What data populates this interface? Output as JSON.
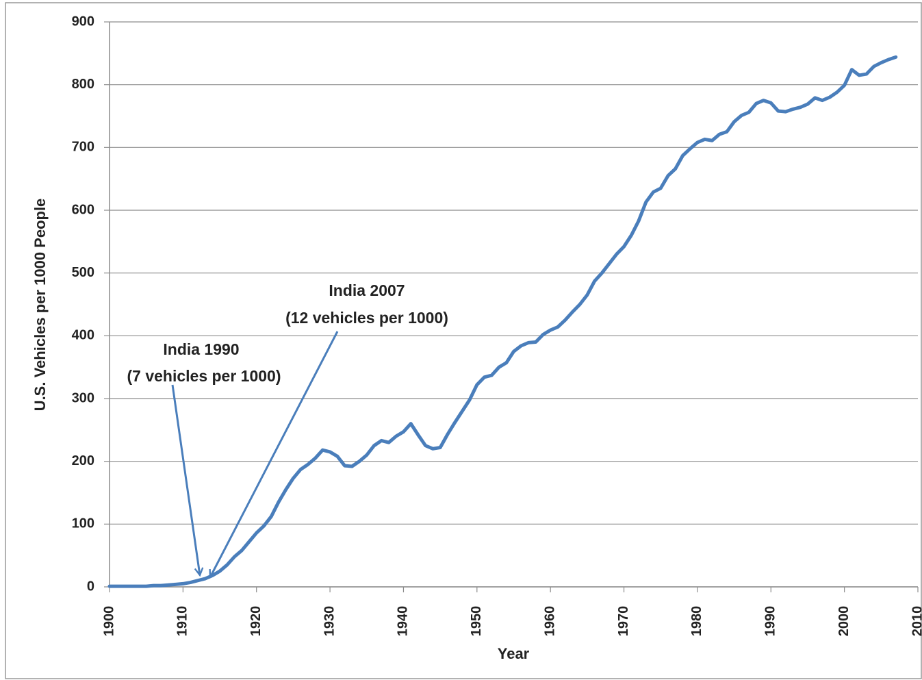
{
  "chart_data": {
    "type": "line",
    "xlabel": "Year",
    "ylabel": "U.S. Vehicles per 1000 People",
    "x": [
      1900,
      1901,
      1902,
      1903,
      1904,
      1905,
      1906,
      1907,
      1908,
      1909,
      1910,
      1911,
      1912,
      1913,
      1914,
      1915,
      1916,
      1917,
      1918,
      1919,
      1920,
      1921,
      1922,
      1923,
      1924,
      1925,
      1926,
      1927,
      1928,
      1929,
      1930,
      1931,
      1932,
      1933,
      1934,
      1935,
      1936,
      1937,
      1938,
      1939,
      1940,
      1941,
      1942,
      1943,
      1944,
      1945,
      1946,
      1947,
      1948,
      1949,
      1950,
      1951,
      1952,
      1953,
      1954,
      1955,
      1956,
      1957,
      1958,
      1959,
      1960,
      1961,
      1962,
      1963,
      1964,
      1965,
      1966,
      1967,
      1968,
      1969,
      1970,
      1971,
      1972,
      1973,
      1974,
      1975,
      1976,
      1977,
      1978,
      1979,
      1980,
      1981,
      1982,
      1983,
      1984,
      1985,
      1986,
      1987,
      1988,
      1989,
      1990,
      1991,
      1992,
      1993,
      1994,
      1995,
      1996,
      1997,
      1998,
      1999,
      2000,
      2001,
      2002,
      2003,
      2004,
      2005,
      2006,
      2007
    ],
    "series": [
      {
        "color": "#4a7ebb",
        "values": [
          1,
          1,
          1,
          1,
          1,
          1,
          2,
          2,
          3,
          4,
          5,
          7,
          10,
          13,
          18,
          25,
          35,
          48,
          58,
          72,
          86,
          97,
          112,
          135,
          155,
          173,
          187,
          195,
          205,
          218,
          215,
          208,
          193,
          192,
          200,
          210,
          225,
          233,
          230,
          240,
          247,
          260,
          242,
          225,
          220,
          222,
          243,
          262,
          280,
          298,
          322,
          334,
          337,
          350,
          357,
          375,
          384,
          389,
          390,
          402,
          409,
          414,
          425,
          438,
          450,
          465,
          487,
          500,
          515,
          530,
          542,
          560,
          583,
          613,
          629,
          635,
          655,
          666,
          687,
          698,
          708,
          713,
          711,
          721,
          725,
          741,
          751,
          756,
          770,
          775,
          771,
          758,
          757,
          761,
          764,
          769,
          779,
          775,
          780,
          788,
          799,
          824,
          815,
          817,
          829,
          835,
          840,
          844
        ]
      }
    ],
    "xlim": [
      1900,
      2010
    ],
    "xticks": [
      1900,
      1910,
      1920,
      1930,
      1940,
      1950,
      1960,
      1970,
      1980,
      1990,
      2000,
      2010
    ],
    "ylim": [
      0,
      900
    ],
    "yticks": [
      0,
      100,
      200,
      300,
      400,
      500,
      600,
      700,
      800,
      900
    ],
    "grid": true,
    "annotations": [
      {
        "lines": [
          "India 1990",
          "(7 vehicles per 1000)"
        ]
      },
      {
        "lines": [
          "India 2007",
          "(12 vehicles per 1000)"
        ]
      }
    ]
  }
}
